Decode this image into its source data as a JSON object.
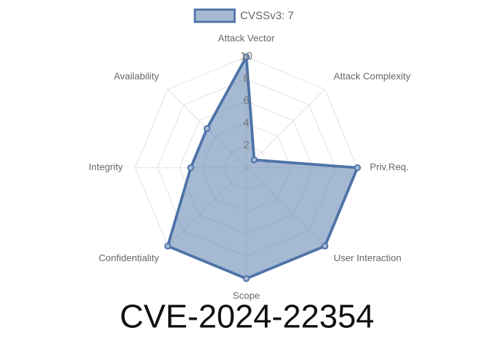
{
  "chart_data": {
    "type": "radar",
    "title": "CVE-2024-22354",
    "categories": [
      "Attack Vector",
      "Attack Complexity",
      "Priv.Req.",
      "User Interaction",
      "Scope",
      "Confidentiality",
      "Integrity",
      "Availability"
    ],
    "series": [
      {
        "name": "CVSSv3: 7",
        "color": "#4e73a8",
        "values": [
          10,
          1,
          10,
          10,
          10,
          10,
          5,
          5
        ]
      }
    ],
    "rlim": [
      0,
      10
    ],
    "rticks": [
      2,
      4,
      6,
      8,
      10
    ],
    "grid": true
  }
}
